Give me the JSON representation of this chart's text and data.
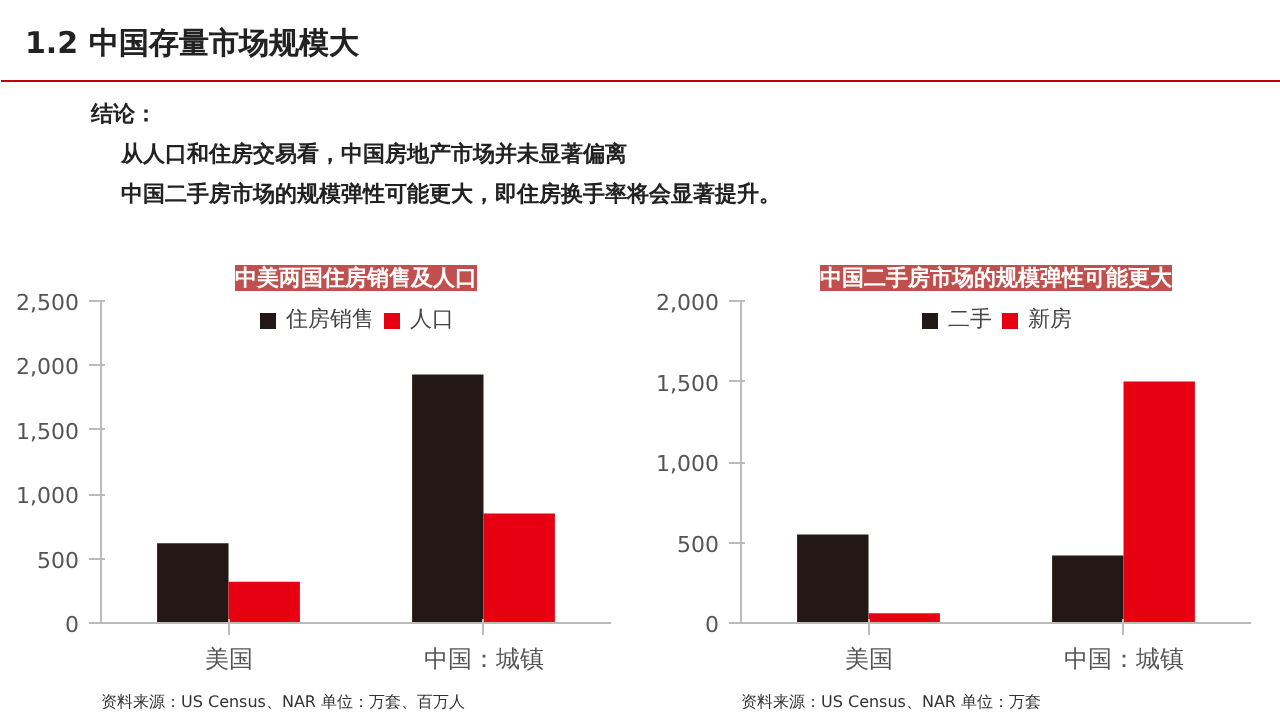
{
  "chart_data": [
    {
      "type": "other",
      "title": "1.2 中国存量市场规模大",
      "annotations": [
        "结论：",
        "从人口和住房交易看，中国房地产市场并未显著偏离",
        "中国二手房市场的规模弹性可能更大，即住房换手率将会显著提升。"
      ]
    },
    {
      "type": "bar",
      "title": "中美两国住房销售及人口",
      "categories": [
        "美国",
        "中国：城镇"
      ],
      "series": [
        {
          "name": "住房销售",
          "color": "#231815",
          "values": [
            620,
            1930
          ]
        },
        {
          "name": "人口",
          "color": "#e60012",
          "values": [
            320,
            850
          ]
        }
      ],
      "ylim": [
        0,
        2500
      ],
      "yticks": [
        0,
        {
          "value": 500,
          "label": "500"
        },
        {
          "value": 1000,
          "label": "1,000"
        },
        {
          "value": 1500,
          "label": "1,500"
        },
        {
          "value": 2000,
          "label": "2,000"
        },
        {
          "value": 2500,
          "label": "2,500"
        }
      ],
      "grid": false,
      "legend": "top",
      "annotations": [
        "资料来源：US Census、NAR 单位：万套、百万人"
      ]
    },
    {
      "type": "bar",
      "title": "中国二手房市场的规模弹性可能更大",
      "categories": [
        "美国",
        "中国：城镇"
      ],
      "series": [
        {
          "name": "二手",
          "color": "#231815",
          "values": [
            550,
            420
          ]
        },
        {
          "name": "新房",
          "color": "#e60012",
          "values": [
            60,
            1500
          ]
        }
      ],
      "ylim": [
        0,
        2000
      ],
      "yticks": [
        0,
        {
          "value": 500,
          "label": "500"
        },
        {
          "value": 1000,
          "label": "1,000"
        },
        {
          "value": 1500,
          "label": "1,500"
        },
        {
          "value": 2000,
          "label": "2,000"
        }
      ],
      "grid": false,
      "legend": "top",
      "annotations": [
        "资料来源：US Census、NAR 单位：万套"
      ]
    }
  ]
}
